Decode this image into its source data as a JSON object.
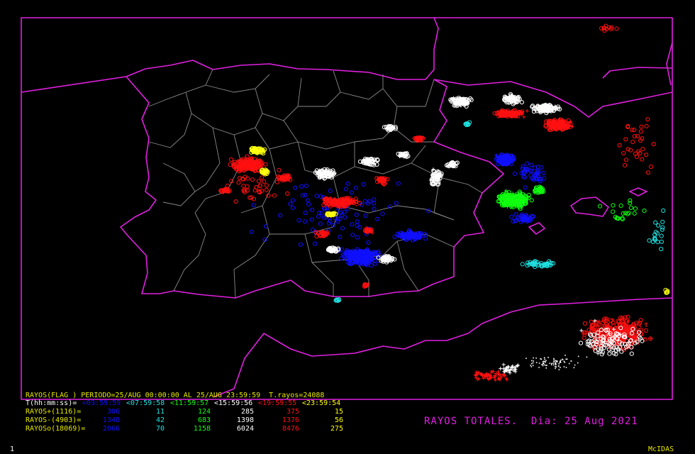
{
  "colors": {
    "frame": "#e020e0",
    "coast": "#e020e0",
    "borders": "#8a8a8a",
    "white": "#ffffff",
    "red": "#ff1010",
    "blue": "#1010ff",
    "green": "#10ff10",
    "yellow": "#ffff10",
    "cyan": "#20e0e0",
    "header": "#e8e800"
  },
  "header": {
    "line": "RAYOS(FLAG ) PERIODO=25/AUG 00:00:00 AL 25/AUG 23:59:59  T.rayos=24088"
  },
  "periods": {
    "label": "T(hh:mm:ss)=",
    "segments": [
      {
        "text": "<03:59:59",
        "color": "#1010ff"
      },
      {
        "text": "<07:59:58",
        "color": "#20e0e0"
      },
      {
        "text": "<11:59:57",
        "color": "#10ff10"
      },
      {
        "text": "<15:59:56",
        "color": "#ffffff"
      },
      {
        "text": "<19:59:55",
        "color": "#ff1010"
      },
      {
        "text": "<23:59:54",
        "color": "#ffff10"
      }
    ]
  },
  "rows": [
    {
      "label": "RAYOS+(1116)=",
      "values": [
        "306",
        "11",
        "124",
        "285",
        "375",
        "15"
      ]
    },
    {
      "label": "RAYOS-(4903)=",
      "values": [
        "1348",
        "42",
        "683",
        "1398",
        "1376",
        "56"
      ]
    },
    {
      "label": "RAYOSo(18069)=",
      "values": [
        "2066",
        "70",
        "1158",
        "6024",
        "8476",
        "275"
      ]
    }
  ],
  "title": "RAYOS TOTALES.  Dia: 25 Aug 2021",
  "frame_number": "1",
  "brand": "McIDAS"
}
